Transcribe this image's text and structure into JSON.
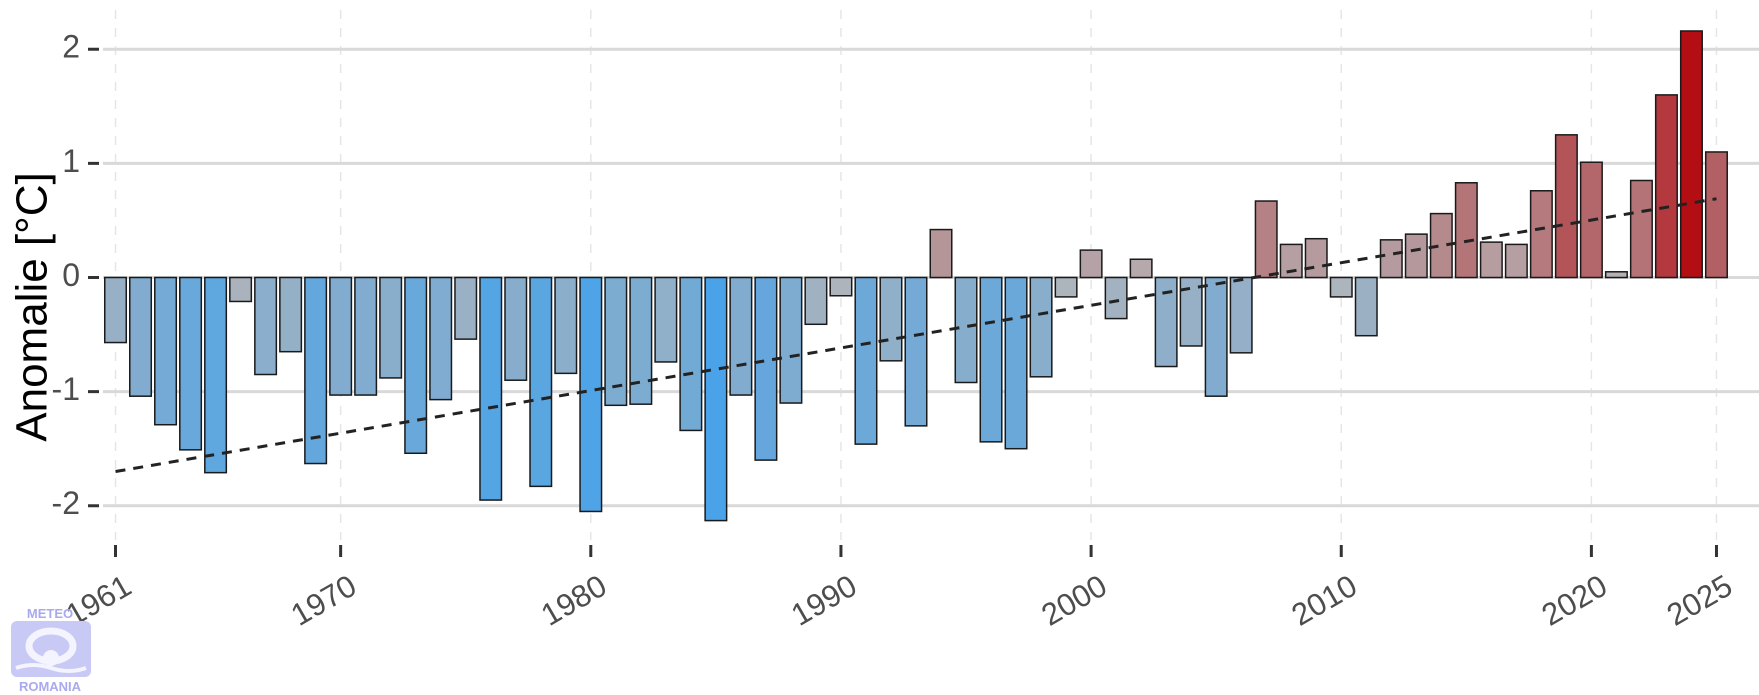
{
  "chart_data": {
    "type": "bar",
    "title": "",
    "xlabel": "",
    "ylabel": "Anomalie [°C]",
    "ylim": [
      -2.3,
      2.3
    ],
    "xlim": [
      1960.5,
      2026.7
    ],
    "yticks": [
      -2,
      -1,
      0,
      1,
      2
    ],
    "yticklabels": [
      "-2",
      "-1",
      "0",
      "1",
      "2"
    ],
    "xticks": [
      1961,
      1970,
      1980,
      1990,
      2000,
      2010,
      2020,
      2025
    ],
    "xticklabels": [
      "1961",
      "1970",
      "1980",
      "1990",
      "2000",
      "2010",
      "2020",
      "2025"
    ],
    "grid": true,
    "years": [
      1961,
      1962,
      1963,
      1964,
      1965,
      1966,
      1967,
      1968,
      1969,
      1970,
      1971,
      1972,
      1973,
      1974,
      1975,
      1976,
      1977,
      1978,
      1979,
      1980,
      1981,
      1982,
      1983,
      1984,
      1985,
      1986,
      1987,
      1988,
      1989,
      1990,
      1991,
      1992,
      1993,
      1994,
      1995,
      1996,
      1997,
      1998,
      1999,
      2000,
      2001,
      2002,
      2003,
      2004,
      2005,
      2006,
      2007,
      2008,
      2009,
      2010,
      2011,
      2012,
      2013,
      2014,
      2015,
      2016,
      2017,
      2018,
      2019,
      2020,
      2021,
      2022,
      2023,
      2024,
      2025
    ],
    "values": [
      -0.57,
      -1.04,
      -1.29,
      -1.51,
      -1.71,
      -0.21,
      -0.85,
      -0.65,
      -1.63,
      -1.03,
      -1.03,
      -0.88,
      -1.54,
      -1.07,
      -0.54,
      -1.95,
      -0.9,
      -1.83,
      -0.84,
      -2.05,
      -1.12,
      -1.11,
      -0.74,
      -1.34,
      -2.13,
      -1.03,
      -1.6,
      -1.1,
      -0.41,
      -0.16,
      -1.46,
      -0.73,
      -1.3,
      0.42,
      -0.92,
      -1.44,
      -1.5,
      -0.87,
      -0.17,
      0.24,
      -0.36,
      0.16,
      -0.78,
      -0.6,
      -1.04,
      -0.66,
      0.67,
      0.29,
      0.34,
      -0.17,
      -0.51,
      0.33,
      0.38,
      0.56,
      0.83,
      0.31,
      0.29,
      0.76,
      1.25,
      1.01,
      0.05,
      0.85,
      1.6,
      2.16,
      1.1
    ],
    "trend": {
      "style": "dashed",
      "start": [
        1961,
        -1.7
      ],
      "end": [
        2025,
        0.69
      ]
    },
    "colors": {
      "cold": "#4aa3e8",
      "neutral": "#b5b5b8",
      "warm": "#b20e14",
      "grid": "#d9d9d9",
      "vgrid": "#e6e6e6",
      "bar_edge": "#1a1a1a",
      "trend": "#222222"
    }
  },
  "logo": {
    "top_text": "METEO",
    "bottom_text": "ROMANIA",
    "color": "#2e2eeb"
  }
}
